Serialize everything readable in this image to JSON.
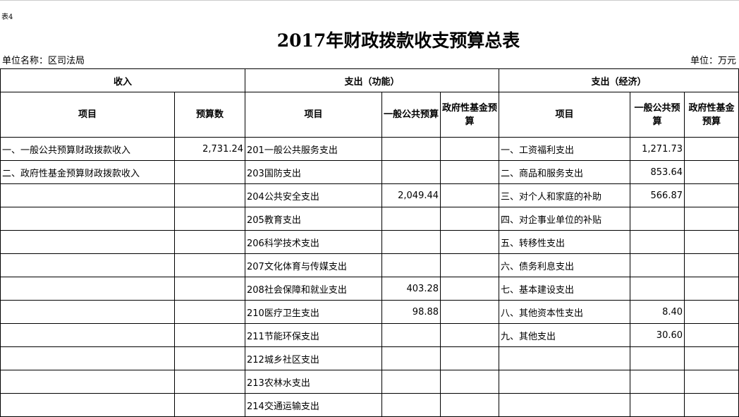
{
  "tag": "表4",
  "title": "2017年财政拨款收支预算总表",
  "unit_name": "单位名称：区司法局",
  "unit": "单位：万元",
  "headers": {
    "income": "收入",
    "func": "支出（功能）",
    "econ": "支出（经济）",
    "item": "项目",
    "budget": "预算数",
    "general": "一般公共预算",
    "fund": "政府性基金预算"
  },
  "rows": [
    {
      "inc": "一、一般公共预算财政拨款收入",
      "inc_v": "2,731.24",
      "f": "201一般公共服务支出",
      "f_g": "",
      "f_f": "",
      "e": "一、工资福利支出",
      "e_g": "1,271.73",
      "e_f": ""
    },
    {
      "inc": "二、政府性基金预算财政拨款收入",
      "inc_v": "",
      "f": "203国防支出",
      "f_g": "",
      "f_f": "",
      "e": "二、商品和服务支出",
      "e_g": "853.64",
      "e_f": ""
    },
    {
      "inc": "",
      "inc_v": "",
      "f": "204公共安全支出",
      "f_g": "2,049.44",
      "f_f": "",
      "e": "三、对个人和家庭的补助",
      "e_g": "566.87",
      "e_f": ""
    },
    {
      "inc": "",
      "inc_v": "",
      "f": "205教育支出",
      "f_g": "",
      "f_f": "",
      "e": "四、对企事业单位的补贴",
      "e_g": "",
      "e_f": ""
    },
    {
      "inc": "",
      "inc_v": "",
      "f": "206科学技术支出",
      "f_g": "",
      "f_f": "",
      "e": "五、转移性支出",
      "e_g": "",
      "e_f": ""
    },
    {
      "inc": "",
      "inc_v": "",
      "f": "207文化体育与传媒支出",
      "f_g": "",
      "f_f": "",
      "e": "六、债务利息支出",
      "e_g": "",
      "e_f": ""
    },
    {
      "inc": "",
      "inc_v": "",
      "f": "208社会保障和就业支出",
      "f_g": "403.28",
      "f_f": "",
      "e": "七、基本建设支出",
      "e_g": "",
      "e_f": ""
    },
    {
      "inc": "",
      "inc_v": "",
      "f": "210医疗卫生支出",
      "f_g": "98.88",
      "f_f": "",
      "e": "八、其他资本性支出",
      "e_g": "8.40",
      "e_f": ""
    },
    {
      "inc": "",
      "inc_v": "",
      "f": "211节能环保支出",
      "f_g": "",
      "f_f": "",
      "e": "九、其他支出",
      "e_g": "30.60",
      "e_f": ""
    },
    {
      "inc": "",
      "inc_v": "",
      "f": "212城乡社区支出",
      "f_g": "",
      "f_f": "",
      "e": "",
      "e_g": "",
      "e_f": ""
    },
    {
      "inc": "",
      "inc_v": "",
      "f": "213农林水支出",
      "f_g": "",
      "f_f": "",
      "e": "",
      "e_g": "",
      "e_f": ""
    },
    {
      "inc": "",
      "inc_v": "",
      "f": "214交通运输支出",
      "f_g": "",
      "f_f": "",
      "e": "",
      "e_g": "",
      "e_f": ""
    }
  ]
}
